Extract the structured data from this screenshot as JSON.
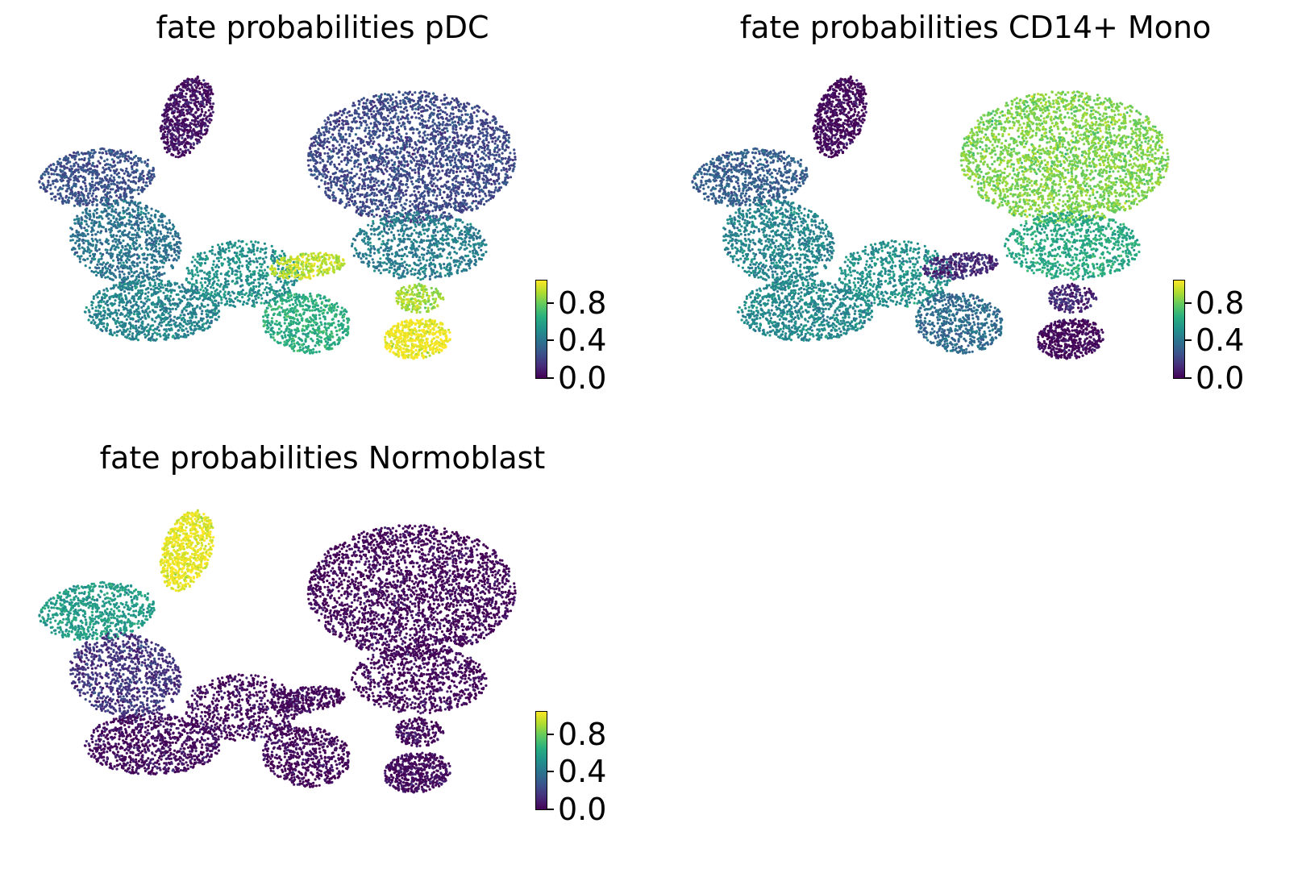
{
  "colormap": "viridis",
  "viridis_stops": [
    "#440154",
    "#472d7b",
    "#3b528b",
    "#2c728e",
    "#21918c",
    "#28ae80",
    "#5ec962",
    "#addc30",
    "#fde725"
  ],
  "chart_data": [
    {
      "type": "scatter",
      "title": "fate probabilities pDC",
      "xlabel": "",
      "ylabel": "",
      "color_range": [
        0.0,
        1.0
      ],
      "colorbar_ticks": [
        "0.0",
        "0.4",
        "0.8"
      ],
      "colorbar_tick_values": [
        0.0,
        0.4,
        0.8
      ],
      "regions": [
        {
          "name": "upper-left arm",
          "fate_probability": 0.05
        },
        {
          "name": "left lobe top",
          "fate_probability": 0.25
        },
        {
          "name": "left lobe middle",
          "fate_probability": 0.38
        },
        {
          "name": "left lobe bottom",
          "fate_probability": 0.45
        },
        {
          "name": "center",
          "fate_probability": 0.5
        },
        {
          "name": "center band",
          "fate_probability": 0.9
        },
        {
          "name": "lower center",
          "fate_probability": 0.62
        },
        {
          "name": "right lobe",
          "fate_probability": 0.22
        },
        {
          "name": "right lobe bottom",
          "fate_probability": 0.42
        },
        {
          "name": "right neck",
          "fate_probability": 0.85
        },
        {
          "name": "lower-right blob",
          "fate_probability": 0.98
        }
      ]
    },
    {
      "type": "scatter",
      "title": "fate probabilities CD14+ Mono",
      "xlabel": "",
      "ylabel": "",
      "color_range": [
        0.0,
        1.0
      ],
      "colorbar_ticks": [
        "0.0",
        "0.4",
        "0.8"
      ],
      "colorbar_tick_values": [
        0.0,
        0.4,
        0.8
      ],
      "regions": [
        {
          "name": "upper-left arm",
          "fate_probability": 0.02
        },
        {
          "name": "left lobe top",
          "fate_probability": 0.3
        },
        {
          "name": "left lobe middle",
          "fate_probability": 0.45
        },
        {
          "name": "left lobe bottom",
          "fate_probability": 0.47
        },
        {
          "name": "center",
          "fate_probability": 0.5
        },
        {
          "name": "center band",
          "fate_probability": 0.12
        },
        {
          "name": "lower center",
          "fate_probability": 0.35
        },
        {
          "name": "right lobe",
          "fate_probability": 0.8
        },
        {
          "name": "right lobe bottom",
          "fate_probability": 0.6
        },
        {
          "name": "right neck",
          "fate_probability": 0.1
        },
        {
          "name": "lower-right blob",
          "fate_probability": 0.01
        }
      ]
    },
    {
      "type": "scatter",
      "title": "fate probabilities Normoblast",
      "xlabel": "",
      "ylabel": "",
      "color_range": [
        0.0,
        1.0
      ],
      "colorbar_ticks": [
        "0.0",
        "0.4",
        "0.8"
      ],
      "colorbar_tick_values": [
        0.0,
        0.4,
        0.8
      ],
      "regions": [
        {
          "name": "upper-left arm",
          "fate_probability": 0.97
        },
        {
          "name": "left lobe top",
          "fate_probability": 0.55
        },
        {
          "name": "left lobe middle",
          "fate_probability": 0.15
        },
        {
          "name": "left lobe bottom",
          "fate_probability": 0.03
        },
        {
          "name": "center",
          "fate_probability": 0.02
        },
        {
          "name": "center band",
          "fate_probability": 0.01
        },
        {
          "name": "lower center",
          "fate_probability": 0.01
        },
        {
          "name": "right lobe",
          "fate_probability": 0.01
        },
        {
          "name": "right lobe bottom",
          "fate_probability": 0.01
        },
        {
          "name": "right neck",
          "fate_probability": 0.01
        },
        {
          "name": "lower-right blob",
          "fate_probability": 0.02
        }
      ]
    }
  ]
}
